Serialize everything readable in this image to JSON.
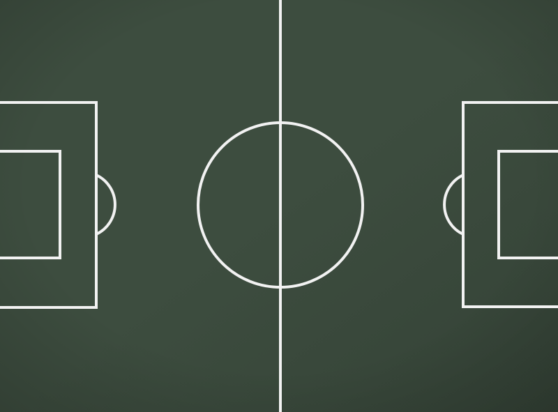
{
  "field": {
    "surface_color": "#3d4d3f",
    "surface_color_light": "#4a5a4b",
    "surface_color_dark": "#344236",
    "line_color": "#f2f2f2"
  }
}
